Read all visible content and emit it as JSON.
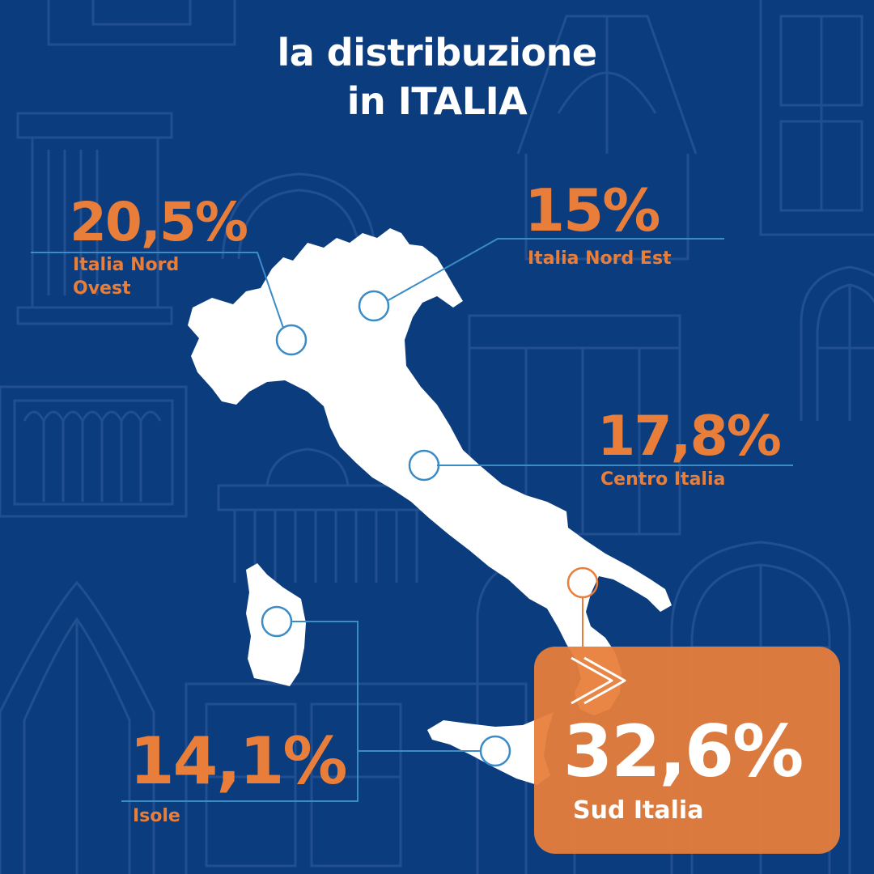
{
  "title": {
    "line1": "la distribuzione",
    "line2": "in ITALIA"
  },
  "colors": {
    "background": "#0b3d7e",
    "accent": "#e87e3a",
    "land": "#ffffff",
    "leader_line": "#3a8bc6"
  },
  "icons": {
    "south_box_icon": "double-chevron-right-icon",
    "region_markers": "circle-marker-icon"
  },
  "regions": [
    {
      "id": "nord-ovest",
      "percent": "20,5%",
      "label_lines": [
        "Italia Nord",
        "Ovest"
      ]
    },
    {
      "id": "nord-est",
      "percent": "15%",
      "label_lines": [
        "Italia Nord Est"
      ]
    },
    {
      "id": "centro",
      "percent": "17,8%",
      "label_lines": [
        "Centro Italia"
      ]
    },
    {
      "id": "isole",
      "percent": "14,1%",
      "label_lines": [
        "Isole"
      ]
    },
    {
      "id": "sud",
      "percent": "32,6%",
      "label_lines": [
        "Sud Italia"
      ],
      "highlighted": true
    }
  ]
}
